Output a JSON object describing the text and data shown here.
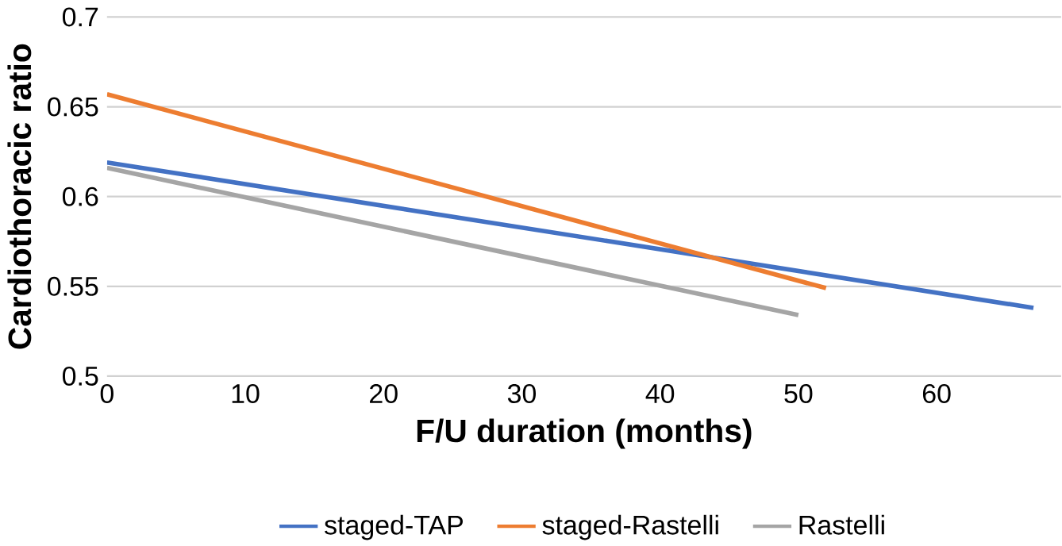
{
  "chart_data": {
    "type": "line",
    "xlabel": "F/U duration (months)",
    "ylabel": "Cardiothoracic ratio",
    "xlim": [
      0,
      69
    ],
    "xticks": [
      0,
      10,
      20,
      30,
      40,
      50,
      60
    ],
    "ylim": [
      0.5,
      0.7
    ],
    "yticks": [
      0.5,
      0.55,
      0.6,
      0.65,
      0.7
    ],
    "grid": "y",
    "legend": "bottom",
    "marker": "none",
    "line_style": "solid",
    "series": [
      {
        "name": "staged-TAP",
        "color": "#4472c4",
        "x": [
          0,
          67
        ],
        "values": [
          0.619,
          0.538
        ]
      },
      {
        "name": "staged-Rastelli",
        "color": "#ed7d31",
        "x": [
          0,
          52
        ],
        "values": [
          0.657,
          0.549
        ]
      },
      {
        "name": "Rastelli",
        "color": "#a5a5a5",
        "x": [
          0,
          50
        ],
        "values": [
          0.616,
          0.534
        ]
      }
    ]
  }
}
